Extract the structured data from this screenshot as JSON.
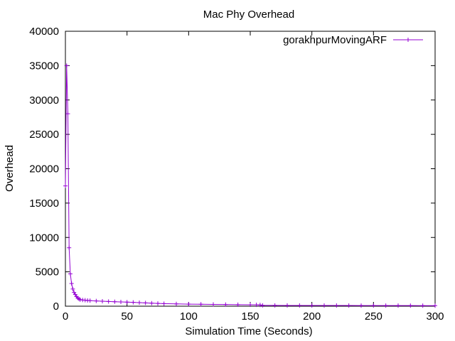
{
  "chart_data": {
    "type": "line",
    "title": "Mac Phy Overhead",
    "xlabel": "Simulation Time (Seconds)",
    "ylabel": "Overhead",
    "xlim": [
      0,
      300
    ],
    "ylim": [
      0,
      40000
    ],
    "x_ticks": [
      0,
      50,
      100,
      150,
      200,
      250,
      300
    ],
    "y_ticks": [
      0,
      5000,
      10000,
      15000,
      20000,
      25000,
      30000,
      35000,
      40000
    ],
    "grid": false,
    "legend_position": "top-right",
    "series": [
      {
        "name": "gorakhpurMovingARF",
        "color": "#9400d3",
        "marker": "plus",
        "x": [
          0,
          1,
          2,
          3,
          4,
          5,
          6,
          7,
          8,
          9,
          10,
          11,
          12,
          14,
          16,
          18,
          20,
          25,
          30,
          35,
          40,
          45,
          50,
          55,
          60,
          65,
          70,
          75,
          80,
          90,
          100,
          110,
          120,
          130,
          140,
          150,
          155,
          158,
          160,
          170,
          180,
          190,
          200,
          210,
          220,
          230,
          240,
          250,
          260,
          270,
          280,
          290,
          300
        ],
        "y": [
          17500,
          35000,
          28000,
          8500,
          4700,
          3300,
          2500,
          2000,
          1700,
          1400,
          1200,
          1050,
          950,
          900,
          870,
          840,
          810,
          760,
          720,
          680,
          650,
          620,
          590,
          560,
          520,
          480,
          440,
          400,
          370,
          330,
          300,
          280,
          260,
          240,
          220,
          210,
          200,
          180,
          120,
          115,
          110,
          108,
          105,
          102,
          100,
          98,
          95,
          93,
          90,
          88,
          86,
          84,
          82
        ]
      }
    ]
  }
}
